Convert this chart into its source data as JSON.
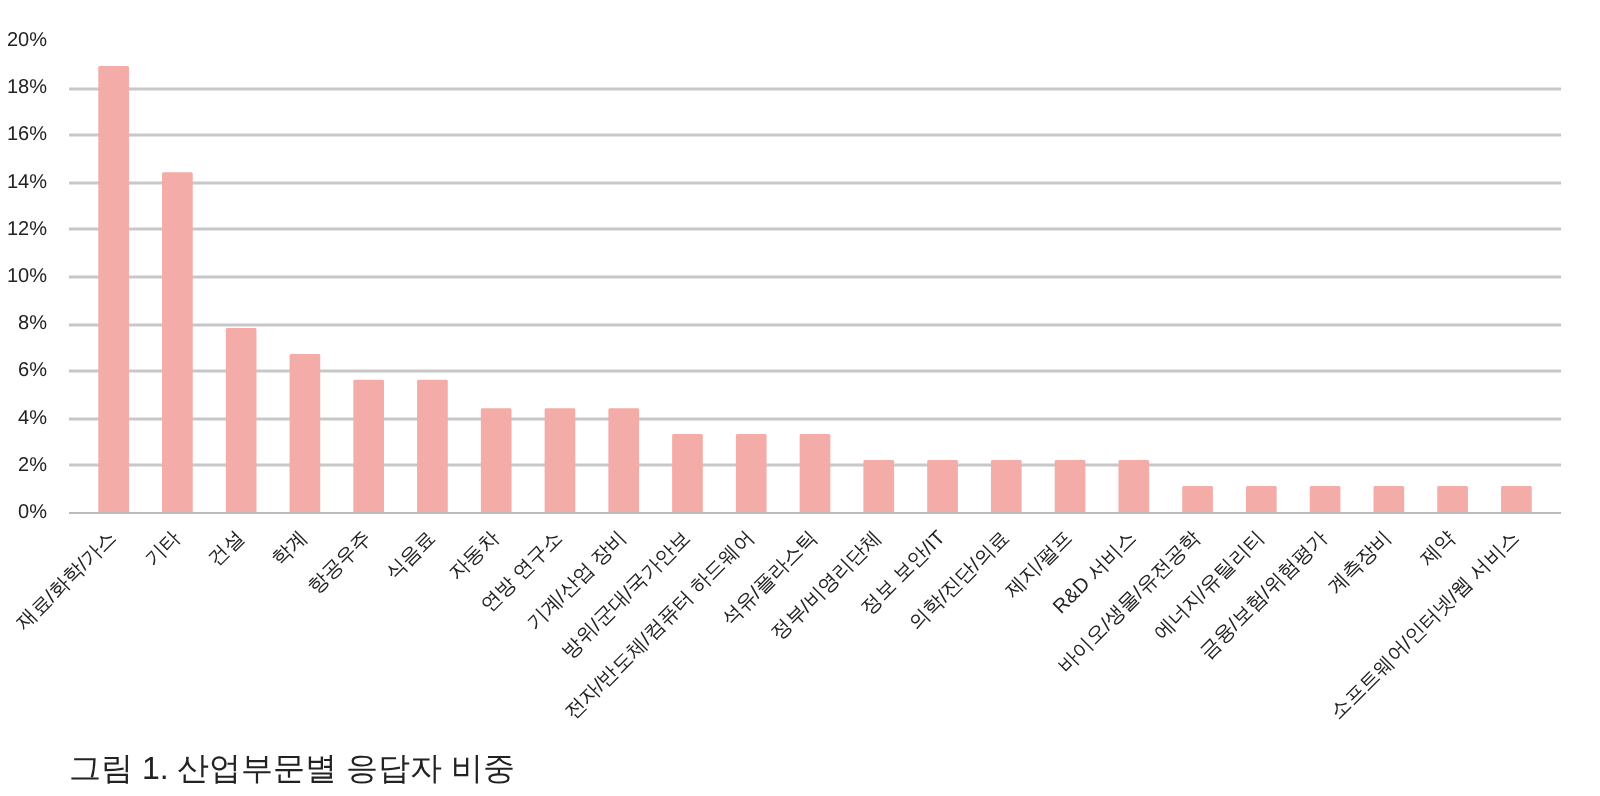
{
  "chart_data": {
    "type": "bar",
    "title": "그림 1. 산업부문별 응답자 비중",
    "categories": [
      "재료/화학/가스",
      "기타",
      "건설",
      "학계",
      "항공우주",
      "식음료",
      "자동차",
      "연방 연구소",
      "기계/산업 장비",
      "방위/군대/국가안보",
      "전자/반도체/컴퓨터 하드웨어",
      "석유/플라스틱",
      "정부/비영리단체",
      "정보 보안/IT",
      "의학/진단/의료",
      "제지/펄프",
      "R&D 서비스",
      "바이오/생물/유전공학",
      "에너지/유틸리티",
      "금융/보험/위험평가",
      "계측장비",
      "제약",
      "소프트웨어/인터넷/웹 서비스"
    ],
    "values": [
      18.9,
      14.4,
      7.8,
      6.7,
      5.6,
      5.6,
      4.4,
      4.4,
      4.4,
      3.3,
      3.3,
      3.3,
      2.2,
      2.2,
      2.2,
      2.2,
      2.2,
      1.1,
      1.1,
      1.1,
      1.1,
      1.1,
      1.1
    ],
    "color": "#f4aca8",
    "ylim": [
      0,
      20
    ],
    "yticks": [
      {
        "value": 0,
        "label": "0%"
      },
      {
        "value": 2,
        "label": "2%"
      },
      {
        "value": 4,
        "label": "4%"
      },
      {
        "value": 6,
        "label": "6%"
      },
      {
        "value": 8,
        "label": "8%"
      },
      {
        "value": 10,
        "label": "10%"
      },
      {
        "value": 12,
        "label": "12%"
      },
      {
        "value": 14,
        "label": "14%"
      },
      {
        "value": 16,
        "label": "16%"
      },
      {
        "value": 18,
        "label": "18%"
      },
      {
        "value": 20,
        "label": "20%"
      }
    ],
    "grid": "y"
  }
}
